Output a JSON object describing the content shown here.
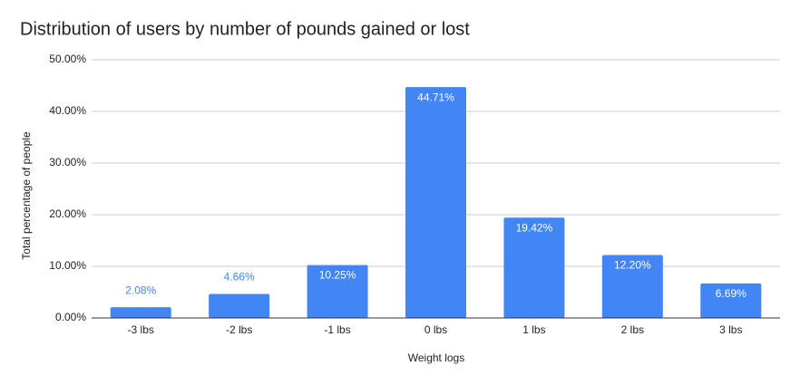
{
  "chart_data": {
    "type": "bar",
    "title": "Distribution of users by number of pounds gained or lost",
    "x_label": "Weight logs",
    "y_label": "Total percentage of people",
    "categories": [
      "-3 lbs",
      "-2 lbs",
      "-1 lbs",
      "0 lbs",
      "1 lbs",
      "2 lbs",
      "3 lbs"
    ],
    "values": [
      2.08,
      4.66,
      10.25,
      44.71,
      19.42,
      12.2,
      6.69
    ],
    "value_labels": [
      "2.08%",
      "4.66%",
      "10.25%",
      "44.71%",
      "19.42%",
      "12.20%",
      "6.69%"
    ],
    "color": "#4285f4",
    "ylim": [
      0,
      50
    ],
    "yticks": [
      {
        "value": 0,
        "label": "0.00%"
      },
      {
        "value": 10,
        "label": "10.00%"
      },
      {
        "value": 20,
        "label": "20.00%"
      },
      {
        "value": 30,
        "label": "30.00%"
      },
      {
        "value": 40,
        "label": "40.00%"
      },
      {
        "value": 50,
        "label": "50.00%"
      }
    ],
    "grid": true
  }
}
